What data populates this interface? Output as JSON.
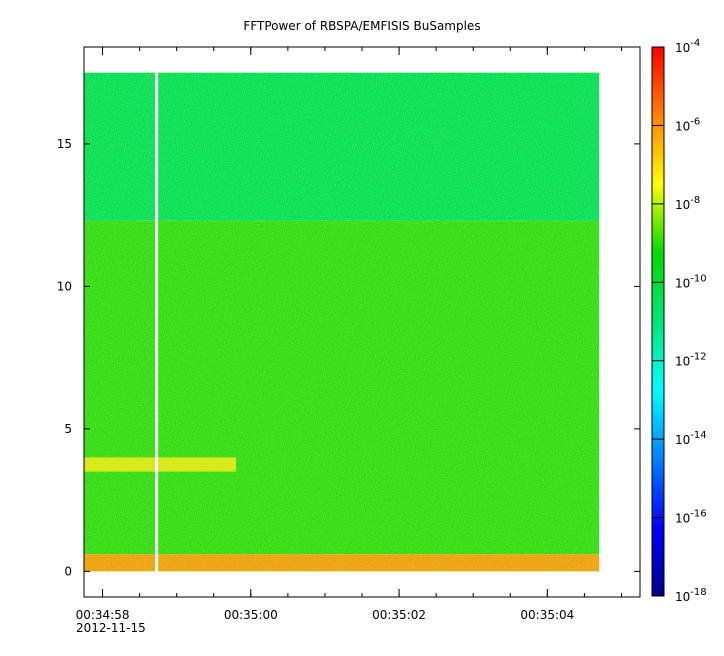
{
  "chart_data": {
    "type": "heatmap",
    "title": "FFTPower of RBSPA/EMFISIS  BuSamples",
    "xlabel": "",
    "ylabel": "",
    "x_axis": {
      "ticks": [
        "00:34:58",
        "00:35:00",
        "00:35:02",
        "00:35:04"
      ],
      "tick_seconds": [
        0,
        2,
        4,
        6
      ],
      "date_label": "2012-11-15",
      "range_seconds": [
        -0.25,
        7.25
      ],
      "minor_tick_seconds": [
        0.0,
        0.5,
        1.0,
        1.5,
        2.0,
        2.5,
        3.0,
        3.5,
        4.0,
        4.5,
        5.0,
        5.5,
        6.0,
        6.5,
        7.0
      ]
    },
    "y_axis": {
      "ticks": [
        "0",
        "5",
        "10",
        "15"
      ],
      "tick_values": [
        0,
        5,
        10,
        15
      ],
      "range": [
        -0.9,
        18.4
      ]
    },
    "data_extent": {
      "x_seconds": [
        -0.25,
        6.7
      ],
      "y": [
        0,
        17.5
      ],
      "gap_seconds": 0.73
    },
    "colorbar": {
      "scale": "log",
      "range": [
        1e-18,
        0.0001
      ],
      "tick_exponents": [
        -4,
        -6,
        -8,
        -10,
        -12,
        -14,
        -16,
        -18
      ],
      "tick_labels": [
        "10",
        "10",
        "10",
        "10",
        "10",
        "10",
        "10",
        "10"
      ],
      "tick_exp_labels": [
        "-4",
        "-6",
        "-8",
        "-10",
        "-12",
        "-14",
        "-16",
        "-18"
      ],
      "colormap": [
        "#00008f",
        "#0000ff",
        "#0080ff",
        "#00ffff",
        "#00e676",
        "#00dc00",
        "#ffff00",
        "#ff8000",
        "#ff0000"
      ]
    },
    "bands": [
      {
        "y_from": 12.3,
        "y_to": 17.5,
        "level": "1e-11",
        "color": "#00e05c"
      },
      {
        "y_from": 0.6,
        "y_to": 12.3,
        "level": "1e-10",
        "color": "#2fdc18"
      },
      {
        "y_from": 3.5,
        "y_to": 4.0,
        "level": "1e-8",
        "color": "#d7e817",
        "x_seconds": [
          -0.25,
          1.8
        ]
      },
      {
        "y_from": 0,
        "y_to": 0.6,
        "level": "1e-7",
        "color": "#f0a010"
      }
    ]
  }
}
